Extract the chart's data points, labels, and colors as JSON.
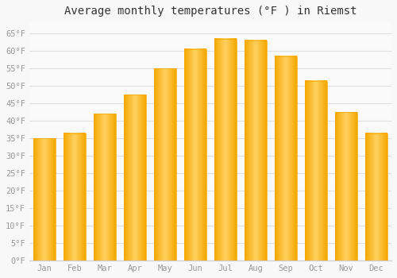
{
  "title": "Average monthly temperatures (°F ) in Riemst",
  "months": [
    "Jan",
    "Feb",
    "Mar",
    "Apr",
    "May",
    "Jun",
    "Jul",
    "Aug",
    "Sep",
    "Oct",
    "Nov",
    "Dec"
  ],
  "values": [
    35,
    36.5,
    42,
    47.5,
    55,
    60.5,
    63.5,
    63,
    58.5,
    51.5,
    42.5,
    36.5
  ],
  "bar_color_center": "#FFD060",
  "bar_color_edge": "#F5A800",
  "background_color": "#F8F8F8",
  "plot_bg_color": "#FAFAFA",
  "grid_color": "#E0E0E0",
  "ylim": [
    0,
    68
  ],
  "yticks": [
    0,
    5,
    10,
    15,
    20,
    25,
    30,
    35,
    40,
    45,
    50,
    55,
    60,
    65
  ],
  "ylabel_suffix": "°F",
  "title_fontsize": 10,
  "tick_fontsize": 7.5,
  "font_family": "monospace",
  "tick_color": "#999999",
  "title_color": "#333333"
}
